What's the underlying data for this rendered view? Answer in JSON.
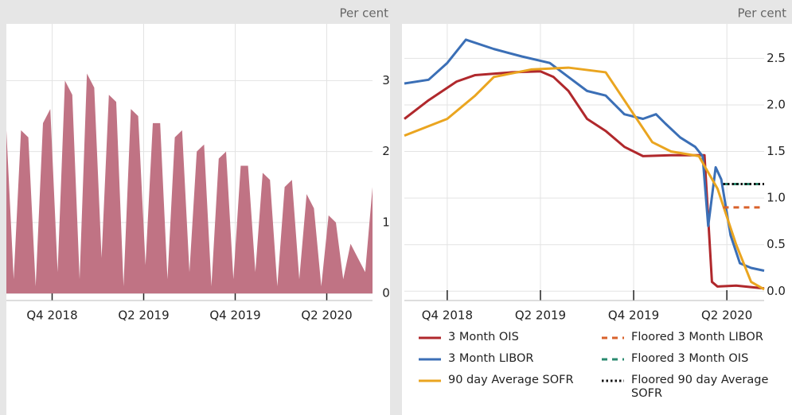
{
  "chart_data": [
    {
      "type": "area",
      "y_unit": "Per cent",
      "color": "#c07384",
      "grid": true,
      "xlim": [
        2018.5,
        2020.5
      ],
      "ylim": [
        -0.1,
        3.8
      ],
      "xticks": [
        {
          "value": 2018.75,
          "label": "Q4 2018"
        },
        {
          "value": 2019.25,
          "label": "Q2 2019"
        },
        {
          "value": 2019.75,
          "label": "Q4 2019"
        },
        {
          "value": 2020.25,
          "label": "Q2 2020"
        }
      ],
      "yticks": [
        0,
        1,
        2,
        3
      ],
      "x": [
        2018.5,
        2018.54,
        2018.58,
        2018.62,
        2018.66,
        2018.7,
        2018.74,
        2018.78,
        2018.82,
        2018.86,
        2018.9,
        2018.94,
        2018.98,
        2019.02,
        2019.06,
        2019.1,
        2019.14,
        2019.18,
        2019.22,
        2019.26,
        2019.3,
        2019.34,
        2019.38,
        2019.42,
        2019.46,
        2019.5,
        2019.54,
        2019.58,
        2019.62,
        2019.66,
        2019.7,
        2019.74,
        2019.78,
        2019.82,
        2019.86,
        2019.9,
        2019.94,
        2019.98,
        2020.02,
        2020.06,
        2020.1,
        2020.14,
        2020.18,
        2020.22,
        2020.26,
        2020.3,
        2020.34,
        2020.38,
        2020.42,
        2020.46,
        2020.5
      ],
      "series": [
        {
          "values": [
            2.3,
            0.2,
            2.3,
            2.2,
            0.1,
            2.4,
            2.6,
            0.3,
            3.0,
            2.8,
            0.2,
            3.1,
            2.9,
            0.5,
            2.8,
            2.7,
            0.1,
            2.6,
            2.5,
            0.4,
            2.4,
            2.4,
            0.2,
            2.2,
            2.3,
            0.3,
            2.0,
            2.1,
            0.1,
            1.9,
            2.0,
            0.2,
            1.8,
            1.8,
            0.3,
            1.7,
            1.6,
            0.1,
            1.5,
            1.6,
            0.2,
            1.4,
            1.2,
            0.1,
            1.1,
            1.0,
            0.2,
            0.7,
            0.5,
            0.3,
            1.5
          ]
        }
      ]
    },
    {
      "type": "line",
      "y_unit": "Per cent",
      "grid": true,
      "xlim": [
        2018.52,
        2020.45
      ],
      "ylim": [
        -0.1,
        2.87
      ],
      "xticks": [
        {
          "value": 2018.75,
          "label": "Q4 2018"
        },
        {
          "value": 2019.25,
          "label": "Q2 2019"
        },
        {
          "value": 2019.75,
          "label": "Q4 2019"
        },
        {
          "value": 2020.25,
          "label": "Q2 2020"
        }
      ],
      "yticks": [
        {
          "value": 0,
          "label": "0.0"
        },
        0.5,
        {
          "value": 1,
          "label": "1.0"
        },
        1.5,
        {
          "value": 2,
          "label": "2.0"
        },
        2.5
      ],
      "series": [
        {
          "name": "3 Month OIS",
          "color": "#b0282c",
          "style": "solid",
          "x": [
            2018.52,
            2018.65,
            2018.8,
            2018.9,
            2019.1,
            2019.25,
            2019.32,
            2019.4,
            2019.5,
            2019.6,
            2019.7,
            2019.8,
            2019.95,
            2020.13,
            2020.17,
            2020.2,
            2020.3,
            2020.4,
            2020.45
          ],
          "values": [
            1.85,
            2.05,
            2.25,
            2.32,
            2.35,
            2.36,
            2.3,
            2.15,
            1.85,
            1.72,
            1.55,
            1.45,
            1.46,
            1.46,
            0.1,
            0.05,
            0.06,
            0.04,
            0.03
          ]
        },
        {
          "name": "3 Month LIBOR",
          "color": "#3b6fb6",
          "style": "solid",
          "x": [
            2018.52,
            2018.65,
            2018.75,
            2018.85,
            2019.0,
            2019.15,
            2019.3,
            2019.4,
            2019.5,
            2019.6,
            2019.7,
            2019.8,
            2019.87,
            2019.92,
            2020.0,
            2020.08,
            2020.12,
            2020.15,
            2020.19,
            2020.22,
            2020.27,
            2020.32,
            2020.38,
            2020.45
          ],
          "values": [
            2.23,
            2.27,
            2.45,
            2.7,
            2.6,
            2.52,
            2.45,
            2.3,
            2.15,
            2.1,
            1.9,
            1.85,
            1.9,
            1.8,
            1.65,
            1.55,
            1.45,
            0.7,
            1.33,
            1.2,
            0.6,
            0.3,
            0.25,
            0.22
          ]
        },
        {
          "name": "90 day Average SOFR",
          "color": "#eaa520",
          "style": "solid",
          "x": [
            2018.52,
            2018.75,
            2018.9,
            2019.0,
            2019.2,
            2019.4,
            2019.6,
            2019.75,
            2019.85,
            2019.95,
            2020.1,
            2020.2,
            2020.3,
            2020.38,
            2020.45
          ],
          "values": [
            1.67,
            1.85,
            2.1,
            2.3,
            2.38,
            2.4,
            2.35,
            1.9,
            1.6,
            1.5,
            1.45,
            1.1,
            0.5,
            0.1,
            0.02
          ]
        },
        {
          "name": "Floored 3 Month LIBOR",
          "color": "#d9622b",
          "style": "dashed",
          "x": [
            2020.23,
            2020.45
          ],
          "values": [
            0.9,
            0.9
          ]
        },
        {
          "name": "Floored 3 Month OIS",
          "color": "#2a8a6f",
          "style": "dashed",
          "x": [
            2020.23,
            2020.45
          ],
          "values": [
            1.15,
            1.15
          ]
        },
        {
          "name": "Floored 90 day Average SOFR",
          "color": "#111111",
          "style": "dotted",
          "x": [
            2020.23,
            2020.45
          ],
          "values": [
            1.15,
            1.15
          ]
        }
      ]
    }
  ]
}
